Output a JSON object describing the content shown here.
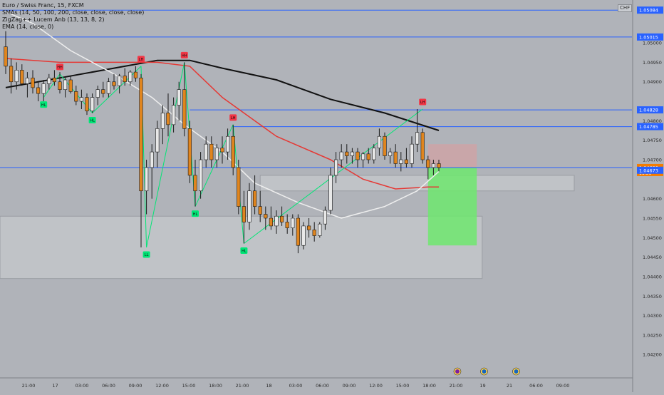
{
  "chart_data": {
    "type": "candlestick",
    "symbol_title": "Euro / Swiss Franc, 15, FXCM",
    "indicators": [
      "SMAs (14, 50, 100, 200, close, close, close, close)",
      "ZigZag++ Lucem Anb (13, 13, 8, 2)",
      "EMA (14, close, 0)"
    ],
    "currency_label": "CHF",
    "y_axis": {
      "range": [
        1.0414,
        1.0511
      ],
      "ticks": [
        "1.05000",
        "1.04950",
        "1.04900",
        "1.04800",
        "1.04750",
        "1.04700",
        "1.04600",
        "1.04550",
        "1.04500",
        "1.04450",
        "1.04400",
        "1.04350",
        "1.04300",
        "1.04250",
        "1.04200"
      ]
    },
    "x_axis": {
      "ticks": [
        "21:00",
        "17",
        "03:00",
        "06:00",
        "09:00",
        "12:00",
        "15:00",
        "18:00",
        "21:00",
        "18",
        "03:00",
        "06:00",
        "09:00",
        "12:00",
        "15:00",
        "18:00",
        "21:00",
        "19",
        "21",
        "06:00",
        "09:00"
      ]
    },
    "price_labels": [
      {
        "value": 1.05084,
        "text": "1.05084",
        "color": "#2962ff"
      },
      {
        "value": 1.05015,
        "text": "1.05015",
        "color": "#2962ff"
      },
      {
        "value": 1.04828,
        "text": "1.04828",
        "color": "#2962ff"
      },
      {
        "value": 1.04785,
        "text": "1.04785",
        "color": "#2962ff"
      },
      {
        "value": 1.0468,
        "text": "1.04680",
        "color": "#f57c00",
        "sub": "11:36"
      },
      {
        "value": 1.04673,
        "text": "1.04673",
        "color": "#2962ff"
      }
    ],
    "levels": [
      1.05084,
      1.05015,
      1.04828,
      1.04785,
      1.0468
    ],
    "zones": [
      {
        "from_x": 0,
        "to_x": 88,
        "top": 1.04555,
        "bottom": 1.04395
      },
      {
        "from_x": 47,
        "to_x": 105,
        "top": 1.0466,
        "bottom": 1.0462
      }
    ],
    "position": {
      "from_x": 78,
      "to_x": 87,
      "entry": 1.0468,
      "stop": 1.0474,
      "target": 1.0448,
      "stop_color": "#e89696",
      "target_color": "#6ee86e"
    },
    "zigzag_points": [
      {
        "x": 10,
        "y": 1.0492,
        "label": "HH",
        "kind": "high"
      },
      {
        "x": 7,
        "y": 1.0486,
        "label": "HL",
        "kind": "low"
      },
      {
        "x": 16,
        "y": 1.0482,
        "label": "HL",
        "kind": "low"
      },
      {
        "x": 25,
        "y": 1.0494,
        "label": "LH",
        "kind": "high"
      },
      {
        "x": 26,
        "y": 1.04475,
        "label": "LL",
        "kind": "low"
      },
      {
        "x": 33,
        "y": 1.0495,
        "label": "HH",
        "kind": "high"
      },
      {
        "x": 35,
        "y": 1.0458,
        "label": "HL",
        "kind": "low"
      },
      {
        "x": 42,
        "y": 1.0479,
        "label": "LH",
        "kind": "high"
      },
      {
        "x": 44,
        "y": 1.04485,
        "label": "HL",
        "kind": "low"
      },
      {
        "x": 77,
        "y": 1.0483,
        "label": "LH",
        "kind": "high"
      }
    ],
    "series": [
      {
        "name": "SMA 200",
        "color": "#111111",
        "x": [
          0,
          10,
          20,
          28,
          34,
          40,
          50,
          60,
          70,
          80
        ],
        "values": [
          1.04885,
          1.0491,
          1.04935,
          1.04955,
          1.04955,
          1.04935,
          1.04905,
          1.04855,
          1.0482,
          1.04775
        ]
      },
      {
        "name": "SMA 100",
        "color": "#e53935",
        "x": [
          0,
          10,
          20,
          28,
          34,
          40,
          50,
          60,
          66,
          72,
          78,
          80
        ],
        "values": [
          1.0496,
          1.0495,
          1.0495,
          1.0495,
          1.0494,
          1.0486,
          1.0476,
          1.047,
          1.0465,
          1.04625,
          1.0463,
          1.0463
        ]
      },
      {
        "name": "SMA 50",
        "color": "#eeeeee",
        "x": [
          0,
          5,
          12,
          20,
          27,
          33,
          40,
          46,
          54,
          62,
          70,
          76,
          80
        ],
        "values": [
          1.0508,
          1.0505,
          1.0498,
          1.0492,
          1.0486,
          1.0479,
          1.0472,
          1.0464,
          1.0459,
          1.0455,
          1.0458,
          1.0462,
          1.0467
        ]
      }
    ],
    "candles": [
      {
        "o": 1.0499,
        "h": 1.0503,
        "l": 1.0492,
        "c": 1.0494
      },
      {
        "o": 1.0494,
        "h": 1.0496,
        "l": 1.0487,
        "c": 1.049
      },
      {
        "o": 1.049,
        "h": 1.0495,
        "l": 1.0488,
        "c": 1.0493
      },
      {
        "o": 1.0493,
        "h": 1.04945,
        "l": 1.0489,
        "c": 1.04895
      },
      {
        "o": 1.04895,
        "h": 1.04925,
        "l": 1.0486,
        "c": 1.0491
      },
      {
        "o": 1.0491,
        "h": 1.0493,
        "l": 1.0487,
        "c": 1.04885
      },
      {
        "o": 1.04885,
        "h": 1.049,
        "l": 1.0485,
        "c": 1.0487
      },
      {
        "o": 1.0487,
        "h": 1.04905,
        "l": 1.0485,
        "c": 1.04895
      },
      {
        "o": 1.04895,
        "h": 1.0492,
        "l": 1.0488,
        "c": 1.0491
      },
      {
        "o": 1.0491,
        "h": 1.0493,
        "l": 1.0489,
        "c": 1.049
      },
      {
        "o": 1.049,
        "h": 1.04925,
        "l": 1.0487,
        "c": 1.0488
      },
      {
        "o": 1.0488,
        "h": 1.0491,
        "l": 1.0486,
        "c": 1.04905
      },
      {
        "o": 1.04905,
        "h": 1.04915,
        "l": 1.0487,
        "c": 1.04875
      },
      {
        "o": 1.04875,
        "h": 1.0489,
        "l": 1.0484,
        "c": 1.0485
      },
      {
        "o": 1.0485,
        "h": 1.0488,
        "l": 1.0483,
        "c": 1.0486
      },
      {
        "o": 1.0486,
        "h": 1.0487,
        "l": 1.04815,
        "c": 1.04825
      },
      {
        "o": 1.04825,
        "h": 1.0487,
        "l": 1.0482,
        "c": 1.0486
      },
      {
        "o": 1.0486,
        "h": 1.0489,
        "l": 1.0484,
        "c": 1.0488
      },
      {
        "o": 1.0488,
        "h": 1.049,
        "l": 1.0486,
        "c": 1.0487
      },
      {
        "o": 1.0487,
        "h": 1.0491,
        "l": 1.0486,
        "c": 1.049
      },
      {
        "o": 1.049,
        "h": 1.0492,
        "l": 1.0488,
        "c": 1.0489
      },
      {
        "o": 1.0489,
        "h": 1.0492,
        "l": 1.0487,
        "c": 1.04915
      },
      {
        "o": 1.04915,
        "h": 1.04935,
        "l": 1.0489,
        "c": 1.049
      },
      {
        "o": 1.049,
        "h": 1.0493,
        "l": 1.0489,
        "c": 1.04925
      },
      {
        "o": 1.04925,
        "h": 1.0494,
        "l": 1.049,
        "c": 1.0491
      },
      {
        "o": 1.0491,
        "h": 1.0492,
        "l": 1.04475,
        "c": 1.0462
      },
      {
        "o": 1.0462,
        "h": 1.047,
        "l": 1.0456,
        "c": 1.0468
      },
      {
        "o": 1.0468,
        "h": 1.0474,
        "l": 1.046,
        "c": 1.0472
      },
      {
        "o": 1.0472,
        "h": 1.048,
        "l": 1.0468,
        "c": 1.0478
      },
      {
        "o": 1.0478,
        "h": 1.0484,
        "l": 1.0474,
        "c": 1.0482
      },
      {
        "o": 1.0482,
        "h": 1.0487,
        "l": 1.0476,
        "c": 1.0479
      },
      {
        "o": 1.0479,
        "h": 1.0486,
        "l": 1.0477,
        "c": 1.0484
      },
      {
        "o": 1.0484,
        "h": 1.049,
        "l": 1.048,
        "c": 1.0488
      },
      {
        "o": 1.0488,
        "h": 1.0495,
        "l": 1.0476,
        "c": 1.0478
      },
      {
        "o": 1.0478,
        "h": 1.048,
        "l": 1.0464,
        "c": 1.0466
      },
      {
        "o": 1.0466,
        "h": 1.047,
        "l": 1.0458,
        "c": 1.0462
      },
      {
        "o": 1.0462,
        "h": 1.0472,
        "l": 1.046,
        "c": 1.047
      },
      {
        "o": 1.047,
        "h": 1.0476,
        "l": 1.0468,
        "c": 1.0474
      },
      {
        "o": 1.0474,
        "h": 1.0476,
        "l": 1.0468,
        "c": 1.047
      },
      {
        "o": 1.047,
        "h": 1.0474,
        "l": 1.0468,
        "c": 1.0473
      },
      {
        "o": 1.0473,
        "h": 1.0476,
        "l": 1.0469,
        "c": 1.0472
      },
      {
        "o": 1.0472,
        "h": 1.0478,
        "l": 1.047,
        "c": 1.0476
      },
      {
        "o": 1.0476,
        "h": 1.0479,
        "l": 1.0466,
        "c": 1.0468
      },
      {
        "o": 1.0468,
        "h": 1.047,
        "l": 1.0456,
        "c": 1.0458
      },
      {
        "o": 1.0458,
        "h": 1.0462,
        "l": 1.04485,
        "c": 1.0454
      },
      {
        "o": 1.0454,
        "h": 1.0464,
        "l": 1.0452,
        "c": 1.0462
      },
      {
        "o": 1.0462,
        "h": 1.0466,
        "l": 1.0456,
        "c": 1.0458
      },
      {
        "o": 1.0458,
        "h": 1.0462,
        "l": 1.0454,
        "c": 1.0456
      },
      {
        "o": 1.0456,
        "h": 1.0458,
        "l": 1.0452,
        "c": 1.0455
      },
      {
        "o": 1.0455,
        "h": 1.0458,
        "l": 1.0452,
        "c": 1.0453
      },
      {
        "o": 1.0453,
        "h": 1.0457,
        "l": 1.0451,
        "c": 1.04555
      },
      {
        "o": 1.04555,
        "h": 1.0458,
        "l": 1.0453,
        "c": 1.0454
      },
      {
        "o": 1.0454,
        "h": 1.0456,
        "l": 1.0451,
        "c": 1.04525
      },
      {
        "o": 1.04525,
        "h": 1.0456,
        "l": 1.04505,
        "c": 1.0455
      },
      {
        "o": 1.0455,
        "h": 1.0456,
        "l": 1.0446,
        "c": 1.0448
      },
      {
        "o": 1.0448,
        "h": 1.0454,
        "l": 1.0447,
        "c": 1.0453
      },
      {
        "o": 1.0453,
        "h": 1.0455,
        "l": 1.045,
        "c": 1.0452
      },
      {
        "o": 1.0452,
        "h": 1.0454,
        "l": 1.0449,
        "c": 1.04505
      },
      {
        "o": 1.04505,
        "h": 1.0454,
        "l": 1.045,
        "c": 1.04535
      },
      {
        "o": 1.04535,
        "h": 1.0458,
        "l": 1.0452,
        "c": 1.0457
      },
      {
        "o": 1.0457,
        "h": 1.0468,
        "l": 1.0456,
        "c": 1.0466
      },
      {
        "o": 1.0466,
        "h": 1.0472,
        "l": 1.0464,
        "c": 1.047
      },
      {
        "o": 1.047,
        "h": 1.0474,
        "l": 1.0468,
        "c": 1.0472
      },
      {
        "o": 1.0472,
        "h": 1.0474,
        "l": 1.0469,
        "c": 1.0471
      },
      {
        "o": 1.0471,
        "h": 1.0473,
        "l": 1.0469,
        "c": 1.0472
      },
      {
        "o": 1.0472,
        "h": 1.0473,
        "l": 1.0468,
        "c": 1.047
      },
      {
        "o": 1.047,
        "h": 1.0472,
        "l": 1.0468,
        "c": 1.04715
      },
      {
        "o": 1.04715,
        "h": 1.0473,
        "l": 1.0469,
        "c": 1.047
      },
      {
        "o": 1.047,
        "h": 1.0474,
        "l": 1.0469,
        "c": 1.0473
      },
      {
        "o": 1.0473,
        "h": 1.0478,
        "l": 1.0471,
        "c": 1.0476
      },
      {
        "o": 1.0476,
        "h": 1.0477,
        "l": 1.047,
        "c": 1.0471
      },
      {
        "o": 1.0471,
        "h": 1.0473,
        "l": 1.0469,
        "c": 1.0472
      },
      {
        "o": 1.0472,
        "h": 1.0474,
        "l": 1.0468,
        "c": 1.0469
      },
      {
        "o": 1.0469,
        "h": 1.0472,
        "l": 1.0467,
        "c": 1.047
      },
      {
        "o": 1.047,
        "h": 1.0473,
        "l": 1.0468,
        "c": 1.0469
      },
      {
        "o": 1.0469,
        "h": 1.0476,
        "l": 1.0468,
        "c": 1.0474
      },
      {
        "o": 1.0474,
        "h": 1.0483,
        "l": 1.0472,
        "c": 1.0477
      },
      {
        "o": 1.0477,
        "h": 1.0478,
        "l": 1.0469,
        "c": 1.047
      },
      {
        "o": 1.047,
        "h": 1.0471,
        "l": 1.0465,
        "c": 1.0468
      },
      {
        "o": 1.0468,
        "h": 1.047,
        "l": 1.0466,
        "c": 1.0469
      },
      {
        "o": 1.0469,
        "h": 1.047,
        "l": 1.0467,
        "c": 1.0468
      }
    ],
    "event_markers": [
      {
        "slot": 16,
        "color": "#7b1fa2"
      },
      {
        "slot": 17,
        "color": "#1565c0"
      },
      {
        "slot": 18.2,
        "color": "#1565c0"
      }
    ],
    "legend_placement": "top-left",
    "grid": false
  }
}
